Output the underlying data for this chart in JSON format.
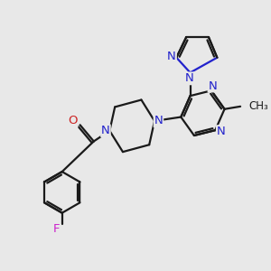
{
  "background_color": "#e8e8e8",
  "bond_color": "#1a1a1a",
  "nitrogen_color": "#2222cc",
  "oxygen_color": "#cc2222",
  "fluorine_color": "#cc22cc",
  "figsize": [
    3.0,
    3.0
  ],
  "dpi": 100,
  "xlim": [
    0,
    10
  ],
  "ylim": [
    0,
    10
  ]
}
